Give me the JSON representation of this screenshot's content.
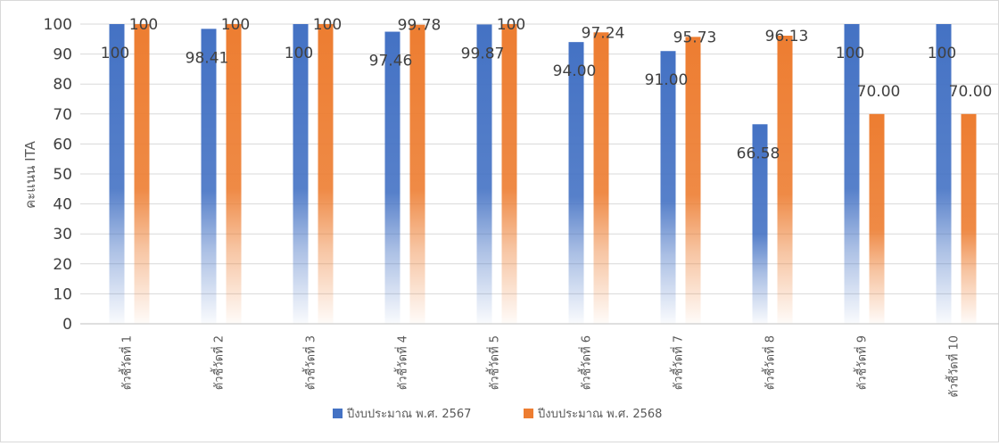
{
  "chart_data": {
    "type": "bar",
    "ylabel": "คะแนน ITA",
    "ylim": [
      0,
      100
    ],
    "yticks": [
      0,
      10,
      20,
      30,
      40,
      50,
      60,
      70,
      80,
      90,
      100
    ],
    "grid": true,
    "legend_position": "bottom",
    "categories": [
      "ตัวชี้วัดที่ 1",
      "ตัวชี้วัดที่ 2",
      "ตัวชี้วัดที่ 3",
      "ตัวชี้วัดที่ 4",
      "ตัวชี้วัดที่ 5",
      "ตัวชี้วัดที่ 6",
      "ตัวชี้วัดที่ 7",
      "ตัวชี้วัดที่ 8",
      "ตัวชี้วัดที่ 9",
      "ตัวชี้วัดที่ 10"
    ],
    "series": [
      {
        "name": "ปีงบประมาณ พ.ศ. 2567",
        "color": "#4472C4",
        "values": [
          100,
          98.41,
          100,
          97.46,
          99.87,
          94.0,
          91.0,
          66.58,
          100,
          100
        ],
        "labels": [
          "100",
          "98.41",
          "100",
          "97.46",
          "99.87",
          "94.00",
          "91.00",
          "66.58",
          "100",
          "100"
        ]
      },
      {
        "name": "ปีงบประมาณ พ.ศ. 2568",
        "color": "#ED7D31",
        "values": [
          100,
          100,
          100,
          99.78,
          100,
          97.24,
          95.73,
          96.13,
          70.0,
          70.0
        ],
        "labels": [
          "100",
          "100",
          "100",
          "99.78",
          "100",
          "97.24",
          "95.73",
          "96.13",
          "70.00",
          "70.00"
        ]
      }
    ]
  }
}
